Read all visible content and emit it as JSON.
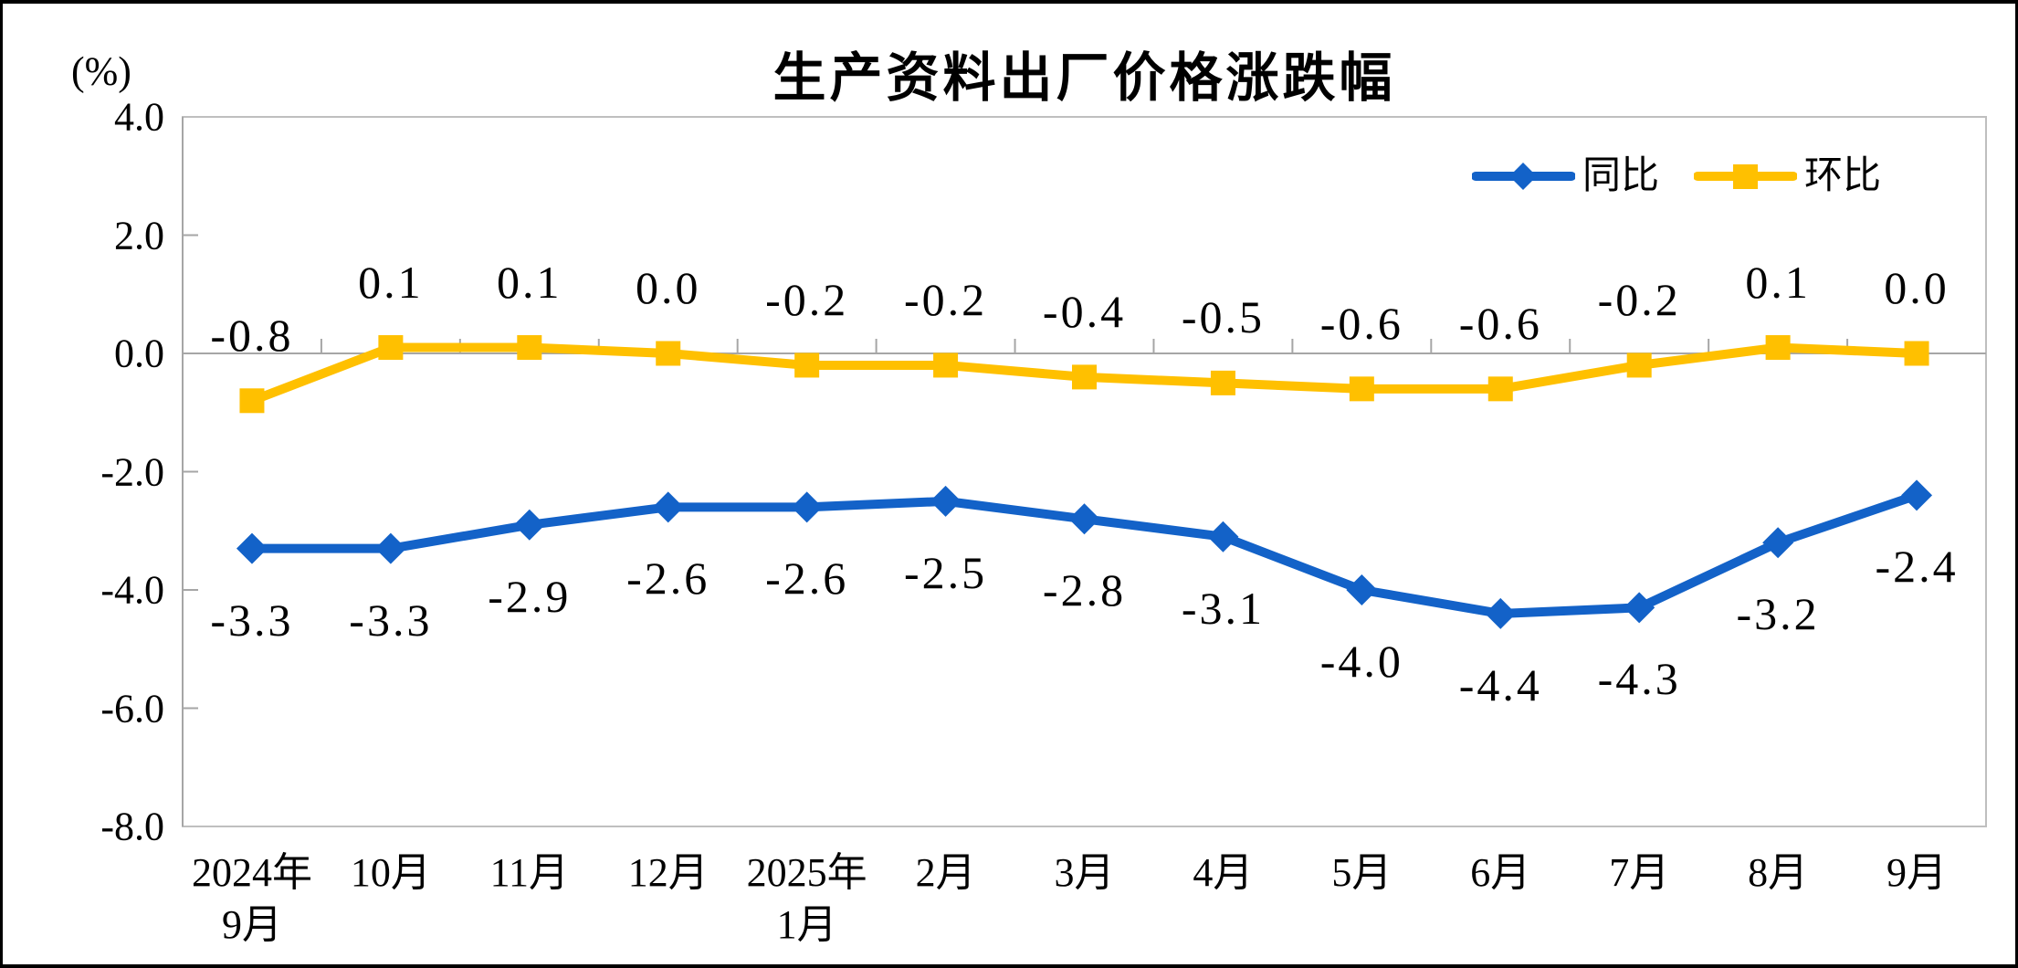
{
  "chart": {
    "title": "生产资料出厂价格涨跌幅",
    "y_unit": "(%)"
  },
  "chart_data": {
    "type": "line",
    "title": "生产资料出厂价格涨跌幅",
    "y_unit": "(%)",
    "categories": [
      "2024年\n9月",
      "10月",
      "11月",
      "12月",
      "2025年\n1月",
      "2月",
      "3月",
      "4月",
      "5月",
      "6月",
      "7月",
      "8月",
      "9月"
    ],
    "series": [
      {
        "name": "同比",
        "marker": "diamond",
        "color": "#1362C8",
        "label_position": "below",
        "values": [
          -3.3,
          -3.3,
          -2.9,
          -2.6,
          -2.6,
          -2.5,
          -2.8,
          -3.1,
          -4.0,
          -4.4,
          -4.3,
          -3.2,
          -2.4
        ]
      },
      {
        "name": "环比",
        "marker": "square",
        "color": "#FFC000",
        "label_position": "above",
        "values": [
          -0.8,
          0.1,
          0.1,
          0.0,
          -0.2,
          -0.2,
          -0.4,
          -0.5,
          -0.6,
          -0.6,
          -0.2,
          0.1,
          0.0
        ]
      }
    ],
    "ylim": [
      -8.0,
      4.0
    ],
    "ytick_step": 2.0,
    "yticks": [
      "4.0",
      "2.0",
      "0.0",
      "-2.0",
      "-4.0",
      "-6.0",
      "-8.0"
    ],
    "grid": "zero-line-only",
    "legend_position": "top-right",
    "axis_color": "#A6A6A6",
    "border_color": "#BFBFBF"
  }
}
